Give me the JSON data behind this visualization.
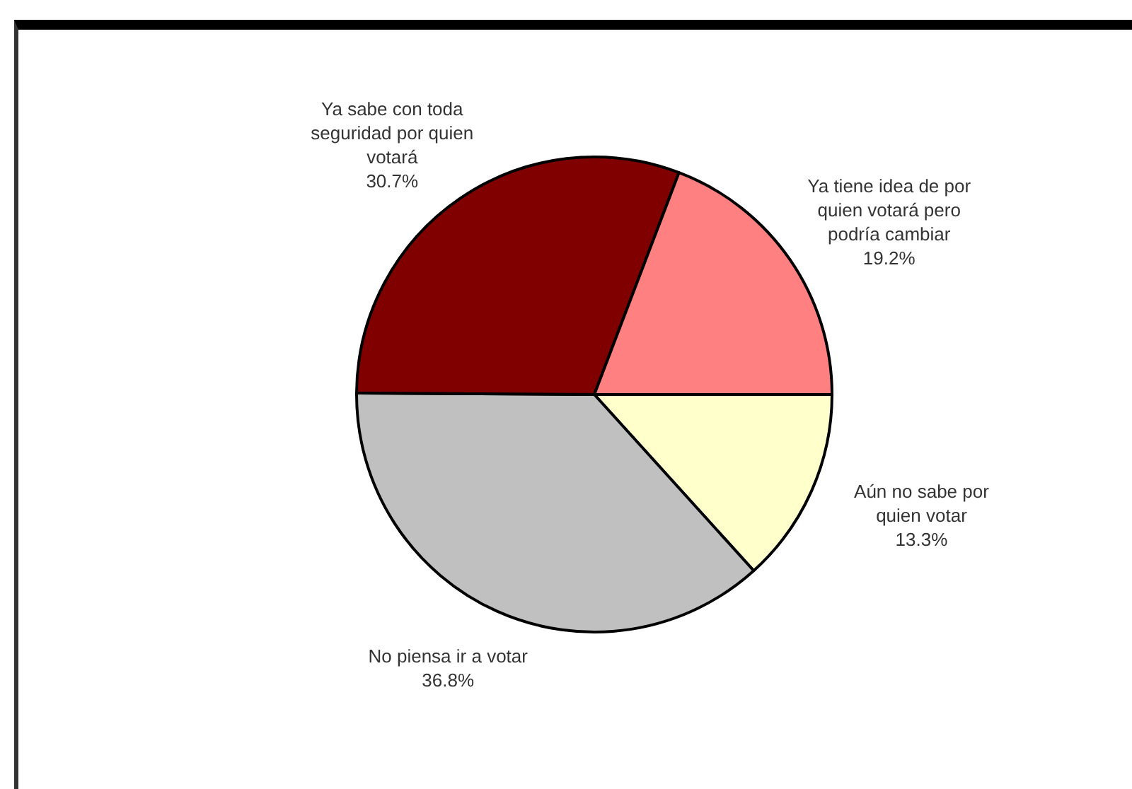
{
  "chart_data": {
    "type": "pie",
    "categories": [
      "Aún no sabe por quien votar",
      "No piensa ir a votar",
      "Ya sabe con toda seguridad por quien votará",
      "Ya tiene idea de por quien votará pero podría cambiar"
    ],
    "values": [
      13.3,
      36.8,
      30.7,
      19.2
    ],
    "value_labels": [
      "13.3%",
      "36.8%",
      "30.7%",
      "19.2%"
    ],
    "colors": [
      "#ffffcc",
      "#c0c0c0",
      "#800000",
      "#ff8080"
    ],
    "legend": false
  }
}
